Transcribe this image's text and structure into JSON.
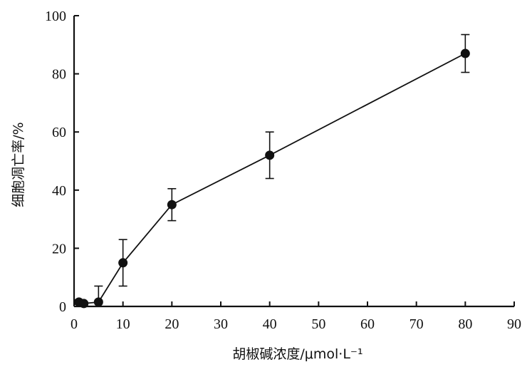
{
  "chart_data": {
    "type": "line",
    "xlabel": "胡椒碱浓度/μmol·L⁻¹",
    "ylabel": "细胞凋亡率/%",
    "xlim": [
      0,
      90
    ],
    "ylim": [
      0,
      100
    ],
    "xticks": [
      0,
      10,
      20,
      30,
      40,
      50,
      60,
      70,
      80,
      90
    ],
    "yticks": [
      0,
      20,
      40,
      60,
      80,
      100
    ],
    "grid": false,
    "series": [
      {
        "x": [
          1,
          2,
          5,
          10,
          20,
          40,
          80
        ],
        "y": [
          1.5,
          1.0,
          1.5,
          15,
          35,
          52,
          87
        ],
        "error": [
          0.8,
          0.5,
          5.5,
          8,
          5.5,
          8,
          6.5
        ]
      }
    ]
  }
}
